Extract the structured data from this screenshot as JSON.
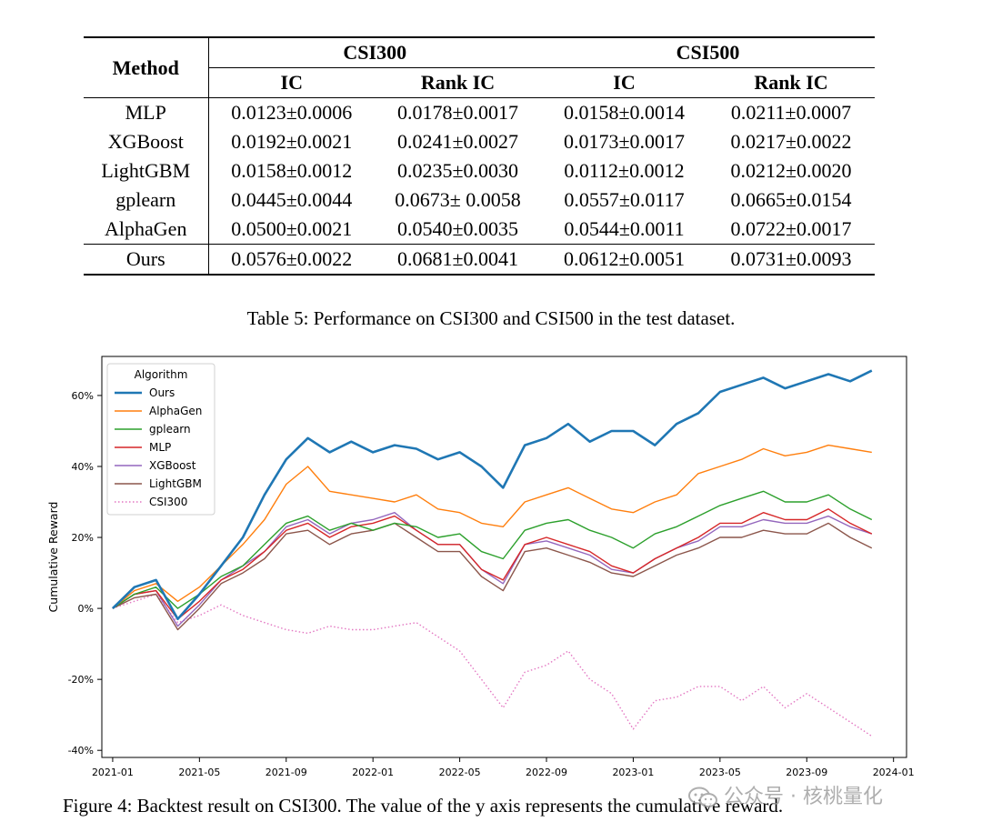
{
  "table": {
    "header": {
      "method": "Method",
      "group1": "CSI300",
      "group2": "CSI500",
      "ic1": "IC",
      "rank1": "Rank IC",
      "ic2": "IC",
      "rank2": "Rank IC"
    },
    "rows": [
      {
        "method": "MLP",
        "c1": "0.0123±0.0006",
        "c2": "0.0178±0.0017",
        "c3": "0.0158±0.0014",
        "c4": "0.0211±0.0007"
      },
      {
        "method": "XGBoost",
        "c1": "0.0192±0.0021",
        "c2": "0.0241±0.0027",
        "c3": "0.0173±0.0017",
        "c4": "0.0217±0.0022"
      },
      {
        "method": "LightGBM",
        "c1": "0.0158±0.0012",
        "c2": "0.0235±0.0030",
        "c3": "0.0112±0.0012",
        "c4": "0.0212±0.0020"
      },
      {
        "method": "gplearn",
        "c1": "0.0445±0.0044",
        "c2": "0.0673± 0.0058",
        "c3": "0.0557±0.0117",
        "c4": "0.0665±0.0154"
      },
      {
        "method": "AlphaGen",
        "c1": "0.0500±0.0021",
        "c2": "0.0540±0.0035",
        "c3": "0.0544±0.0011",
        "c4": "0.0722±0.0017"
      }
    ],
    "ours": {
      "method": "Ours",
      "c1": "0.0576±0.0022",
      "c2": "0.0681±0.0041",
      "c3": "0.0612±0.0051",
      "c4": "0.0731±0.0093"
    },
    "caption": "Table 5: Performance on CSI300 and CSI500 in the test dataset."
  },
  "figure_caption": "Figure 4: Backtest result on CSI300. The value of the y axis represents the cumulative reward.",
  "watermark": "公众号 · 核桃量化",
  "chart_data": {
    "type": "line",
    "ylabel": "Cumulative Reward",
    "xlabel": "",
    "x_ticks": [
      "2021-01",
      "2021-05",
      "2021-09",
      "2022-01",
      "2022-05",
      "2022-09",
      "2023-01",
      "2023-05",
      "2023-09",
      "2024-01"
    ],
    "y_ticks": [
      "-40%",
      "-20%",
      "0%",
      "20%",
      "40%",
      "60%"
    ],
    "y_tick_values": [
      -40,
      -20,
      0,
      20,
      40,
      60
    ],
    "ylim": [
      -42,
      71
    ],
    "xlim": [
      -0.5,
      36.6
    ],
    "legend_title": "Algorithm",
    "legend_position": "upper-left",
    "x_months": [
      0,
      1,
      2,
      3,
      4,
      5,
      6,
      7,
      8,
      9,
      10,
      11,
      12,
      13,
      14,
      15,
      16,
      17,
      18,
      19,
      20,
      21,
      22,
      23,
      24,
      25,
      26,
      27,
      28,
      29,
      30,
      31,
      32,
      33,
      34,
      35
    ],
    "series": [
      {
        "name": "Ours",
        "color": "#1f77b4",
        "style": "solid",
        "width": 2.6,
        "values": [
          0,
          6,
          8,
          -3,
          4,
          12,
          20,
          32,
          42,
          48,
          44,
          47,
          44,
          46,
          45,
          42,
          44,
          40,
          34,
          46,
          48,
          52,
          47,
          50,
          50,
          46,
          52,
          55,
          61,
          63,
          65,
          62,
          64,
          66,
          64,
          67
        ]
      },
      {
        "name": "AlphaGen",
        "color": "#ff7f0e",
        "style": "solid",
        "width": 1.4,
        "values": [
          0,
          5,
          7,
          2,
          6,
          12,
          18,
          25,
          35,
          40,
          33,
          32,
          31,
          30,
          32,
          28,
          27,
          24,
          23,
          30,
          32,
          34,
          31,
          28,
          27,
          30,
          32,
          38,
          40,
          42,
          45,
          43,
          44,
          46,
          45,
          44
        ]
      },
      {
        "name": "gplearn",
        "color": "#2ca02c",
        "style": "solid",
        "width": 1.4,
        "values": [
          0,
          4,
          6,
          0,
          4,
          9,
          12,
          18,
          24,
          26,
          22,
          24,
          22,
          24,
          23,
          20,
          21,
          16,
          14,
          22,
          24,
          25,
          22,
          20,
          17,
          21,
          23,
          26,
          29,
          31,
          33,
          30,
          30,
          32,
          28,
          25
        ]
      },
      {
        "name": "MLP",
        "color": "#d62728",
        "style": "solid",
        "width": 1.4,
        "values": [
          0,
          4,
          5,
          -3,
          2,
          8,
          11,
          16,
          22,
          24,
          20,
          23,
          24,
          26,
          22,
          18,
          18,
          11,
          8,
          18,
          20,
          18,
          16,
          12,
          10,
          14,
          17,
          20,
          24,
          24,
          27,
          25,
          25,
          28,
          24,
          21
        ]
      },
      {
        "name": "XGBoost",
        "color": "#9467bd",
        "style": "solid",
        "width": 1.4,
        "values": [
          0,
          4,
          5,
          -5,
          1,
          8,
          12,
          16,
          23,
          25,
          21,
          24,
          25,
          27,
          22,
          18,
          18,
          11,
          7,
          18,
          19,
          17,
          15,
          11,
          10,
          14,
          17,
          19,
          23,
          23,
          25,
          24,
          24,
          26,
          23,
          21
        ]
      },
      {
        "name": "LightGBM",
        "color": "#8c564b",
        "style": "solid",
        "width": 1.4,
        "values": [
          0,
          3,
          4,
          -6,
          0,
          7,
          10,
          14,
          21,
          22,
          18,
          21,
          22,
          24,
          20,
          16,
          16,
          9,
          5,
          16,
          17,
          15,
          13,
          10,
          9,
          12,
          15,
          17,
          20,
          20,
          22,
          21,
          21,
          24,
          20,
          17
        ]
      },
      {
        "name": "CSI300",
        "color": "#e377c2",
        "style": "dotted",
        "width": 1.4,
        "values": [
          0,
          2,
          4,
          -4,
          -2,
          1,
          -2,
          -4,
          -6,
          -7,
          -5,
          -6,
          -6,
          -5,
          -4,
          -8,
          -12,
          -20,
          -28,
          -18,
          -16,
          -12,
          -20,
          -24,
          -34,
          -26,
          -25,
          -22,
          -22,
          -26,
          -22,
          -28,
          -24,
          -28,
          -32,
          -36
        ]
      }
    ]
  }
}
